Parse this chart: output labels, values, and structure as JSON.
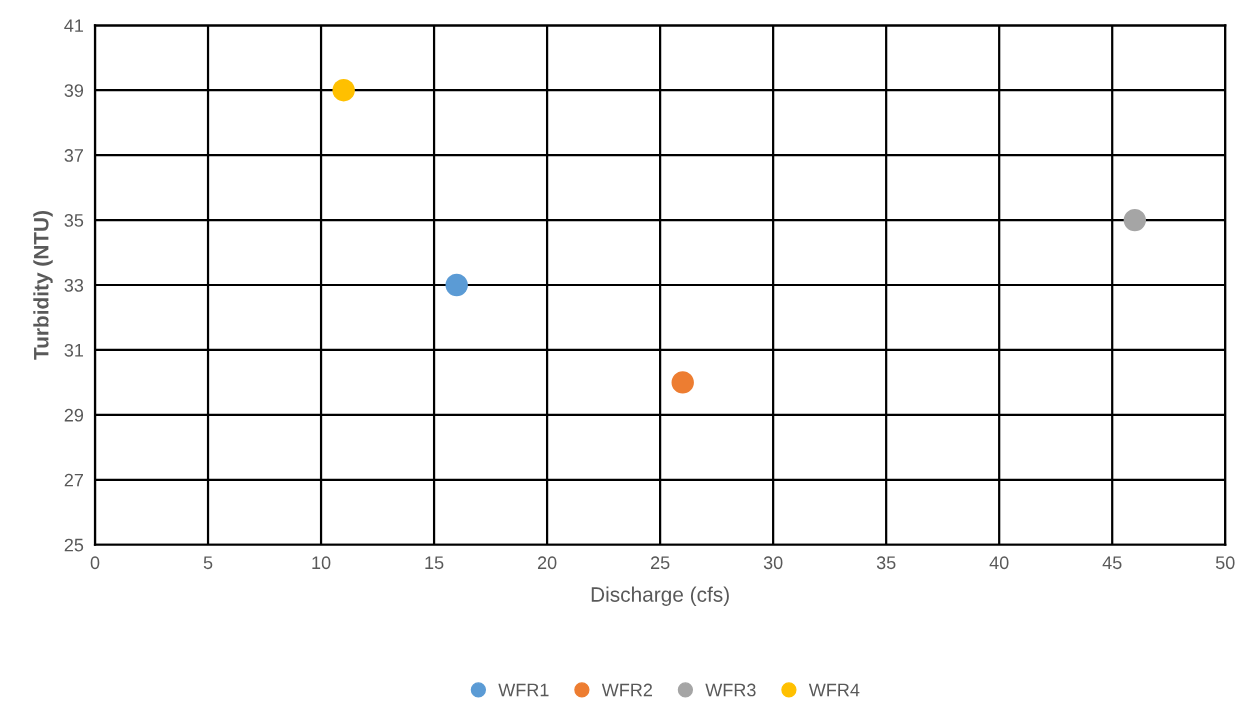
{
  "chart_data": {
    "type": "scatter",
    "xlabel": "Discharge (cfs)",
    "ylabel": "Turbidity (NTU)",
    "series": [
      {
        "name": "WFR1",
        "color": "#5b9bd5",
        "x": [
          16
        ],
        "values": [
          33
        ]
      },
      {
        "name": "WFR2",
        "color": "#ed7d31",
        "x": [
          26
        ],
        "values": [
          30
        ]
      },
      {
        "name": "WFR3",
        "color": "#a5a5a5",
        "x": [
          46
        ],
        "values": [
          35
        ]
      },
      {
        "name": "WFR4",
        "color": "#ffc000",
        "x": [
          11
        ],
        "values": [
          39
        ]
      }
    ],
    "xlim": [
      0,
      50
    ],
    "xticks": [
      0,
      5,
      10,
      15,
      20,
      25,
      30,
      35,
      40,
      45,
      50
    ],
    "ylim": [
      25,
      41
    ],
    "yticks": [
      25,
      27,
      29,
      31,
      33,
      35,
      37,
      39,
      41
    ],
    "grid": true,
    "legend": "bottom",
    "marker": "circle"
  }
}
